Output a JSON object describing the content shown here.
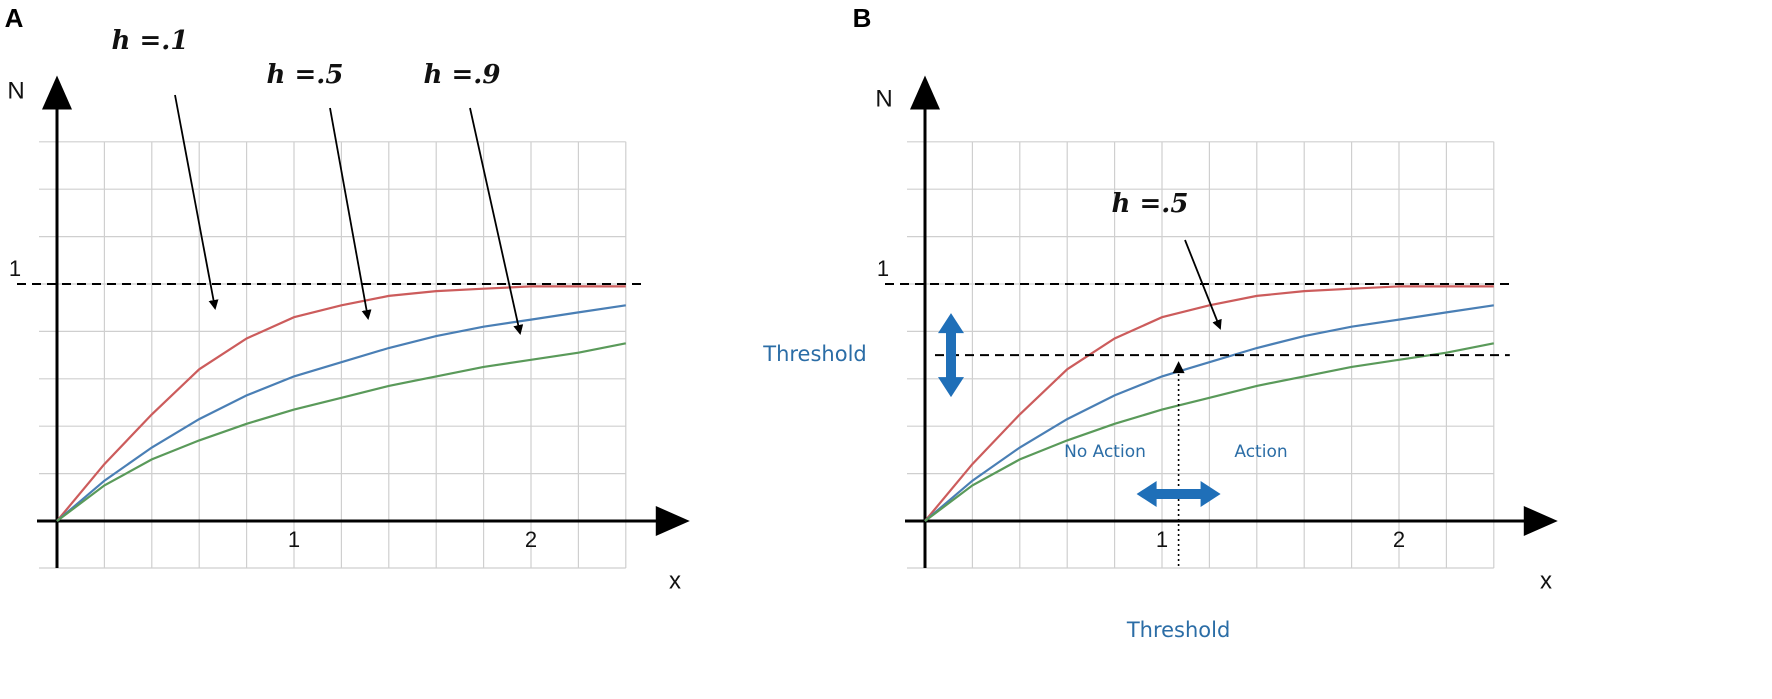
{
  "chart_data": [
    {
      "type": "line",
      "panel": "A",
      "ylabel": "N",
      "xlabel": "x",
      "xlim": [
        0,
        2.67
      ],
      "ylim": [
        0,
        1.88
      ],
      "xticks": [
        1,
        2
      ],
      "yticks": [
        1
      ],
      "grid_x": [
        0.2,
        0.4,
        0.6,
        0.8,
        1,
        1.2,
        1.4,
        1.6,
        1.8,
        2,
        2.2,
        2.4
      ],
      "grid_y": [
        0.2,
        0.4,
        0.6,
        0.8,
        1,
        1.2,
        1.4,
        1.6
      ],
      "x": [
        0,
        0.2,
        0.4,
        0.6,
        0.8,
        1,
        1.2,
        1.4,
        1.6,
        1.8,
        2,
        2.2,
        2.4
      ],
      "series": [
        {
          "name": "h =.1",
          "color": "#cc5c5c",
          "values": [
            0,
            0.24,
            0.45,
            0.64,
            0.77,
            0.86,
            0.91,
            0.95,
            0.97,
            0.98,
            0.99,
            0.99,
            0.99
          ]
        },
        {
          "name": "h =.5",
          "color": "#4a7fb5",
          "values": [
            0,
            0.17,
            0.31,
            0.43,
            0.53,
            0.61,
            0.67,
            0.73,
            0.78,
            0.82,
            0.85,
            0.88,
            0.91
          ]
        },
        {
          "name": "h =.9",
          "color": "#5a9a5a",
          "values": [
            0,
            0.15,
            0.26,
            0.34,
            0.41,
            0.47,
            0.52,
            0.57,
            0.61,
            0.65,
            0.68,
            0.71,
            0.75
          ]
        }
      ]
    },
    {
      "type": "line",
      "panel": "B",
      "ylabel": "N",
      "xlabel": "x",
      "xlim": [
        0,
        2.67
      ],
      "ylim": [
        0,
        1.88
      ],
      "xticks": [
        1,
        2
      ],
      "yticks": [
        1
      ],
      "grid_x": [
        0.2,
        0.4,
        0.6,
        0.8,
        1,
        1.2,
        1.4,
        1.6,
        1.8,
        2,
        2.2,
        2.4
      ],
      "grid_y": [
        0.2,
        0.4,
        0.6,
        0.8,
        1,
        1.2,
        1.4,
        1.6
      ],
      "x": [
        0,
        0.2,
        0.4,
        0.6,
        0.8,
        1,
        1.2,
        1.4,
        1.6,
        1.8,
        2,
        2.2,
        2.4
      ],
      "series": [
        {
          "color": "#cc5c5c",
          "values": [
            0,
            0.24,
            0.45,
            0.64,
            0.77,
            0.86,
            0.91,
            0.95,
            0.97,
            0.98,
            0.99,
            0.99,
            0.99
          ]
        },
        {
          "name": "h =.5",
          "color": "#4a7fb5",
          "values": [
            0,
            0.17,
            0.31,
            0.43,
            0.53,
            0.61,
            0.67,
            0.73,
            0.78,
            0.82,
            0.85,
            0.88,
            0.91
          ]
        },
        {
          "color": "#5a9a5a",
          "values": [
            0,
            0.15,
            0.26,
            0.34,
            0.41,
            0.47,
            0.52,
            0.57,
            0.61,
            0.65,
            0.68,
            0.71,
            0.75
          ]
        }
      ],
      "annotations": [
        {
          "text": "Threshold",
          "y": 0.7
        },
        {
          "text": "Threshold",
          "x": 1.07
        },
        {
          "text": "No Action"
        },
        {
          "text": "Action"
        }
      ]
    }
  ]
}
